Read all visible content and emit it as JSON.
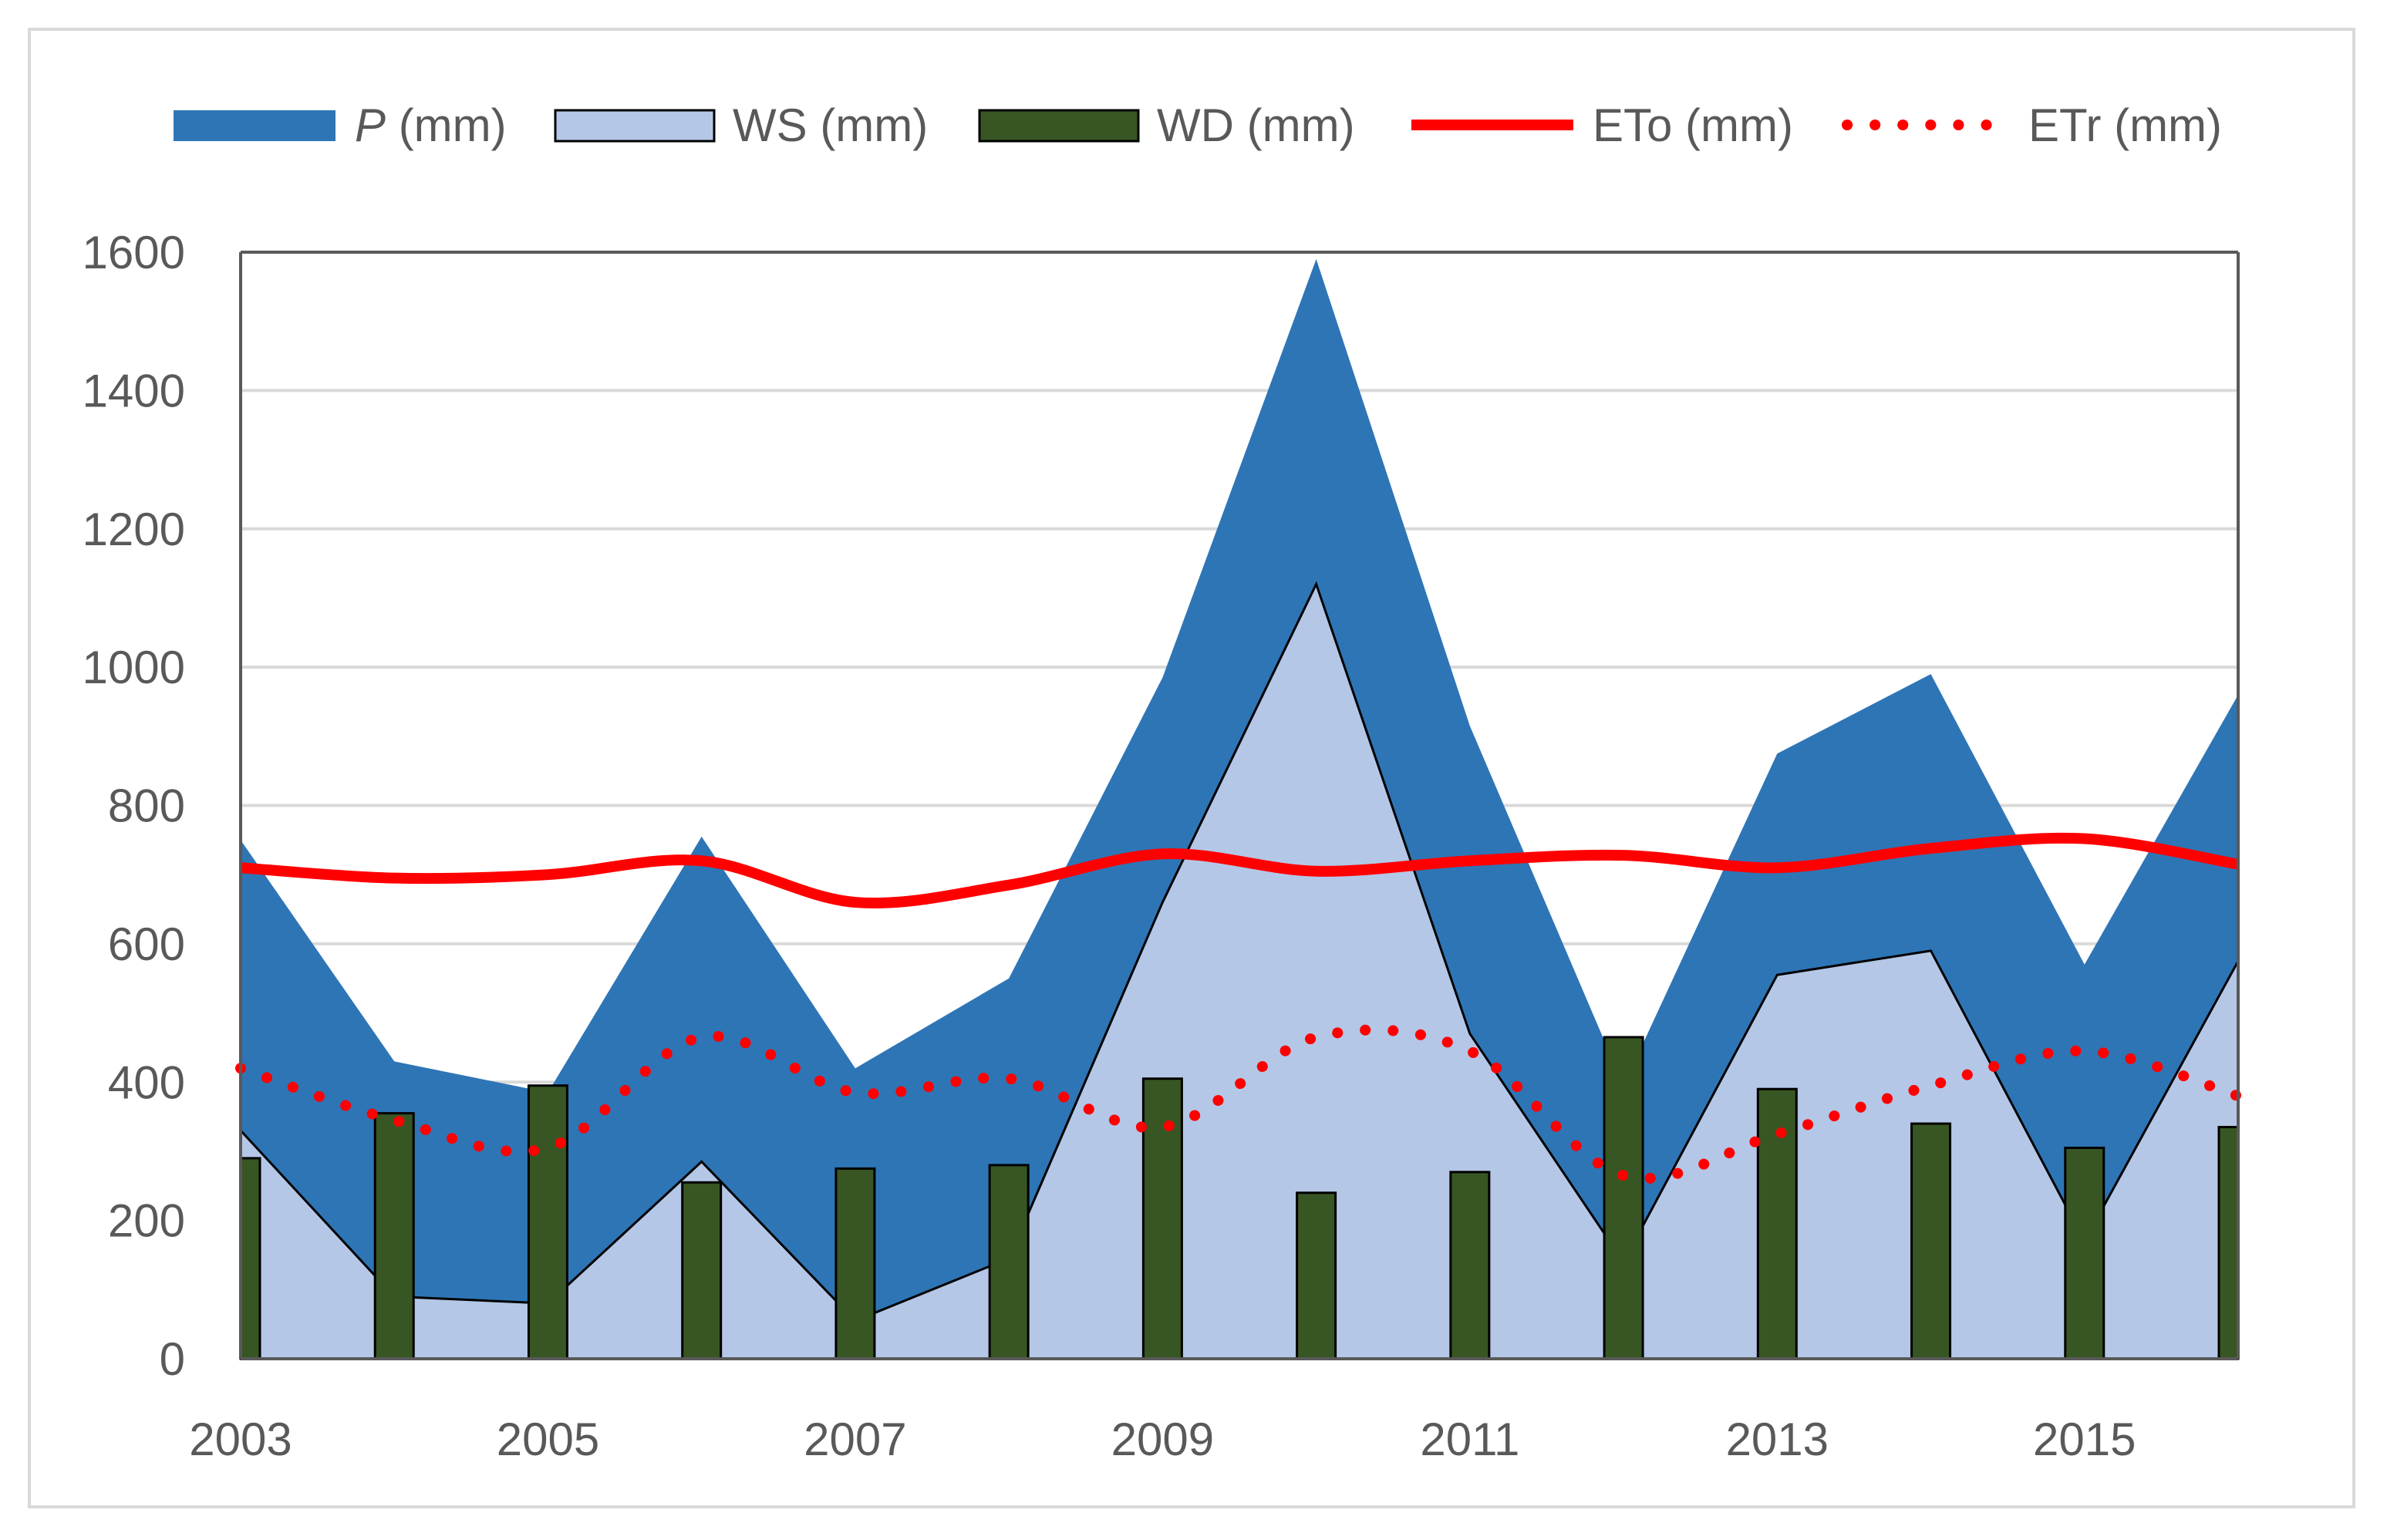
{
  "chart_data": {
    "type": "area",
    "title": "",
    "xlabel": "",
    "ylabel": "",
    "x": [
      2003,
      2004,
      2005,
      2006,
      2007,
      2008,
      2009,
      2010,
      2011,
      2012,
      2013,
      2014,
      2015,
      2016
    ],
    "xticks": [
      "2003",
      "2005",
      "2007",
      "2009",
      "2011",
      "2013",
      "2015"
    ],
    "ylim": [
      0,
      1600
    ],
    "yticks": [
      "0",
      "200",
      "400",
      "600",
      "800",
      "1000",
      "1200",
      "1400",
      "1600"
    ],
    "grid": true,
    "legend_position": "top",
    "series": [
      {
        "name": "P (mm)",
        "name_italic": "P",
        "name_rest": " (mm)",
        "kind": "area",
        "color": "#2e75b6",
        "values": [
          750,
          430,
          385,
          755,
          420,
          550,
          985,
          1590,
          915,
          395,
          875,
          990,
          570,
          960
        ]
      },
      {
        "name": "WS (mm)",
        "kind": "area",
        "color": "#b4c7e7",
        "values": [
          330,
          90,
          80,
          285,
          55,
          145,
          660,
          1120,
          470,
          140,
          555,
          590,
          170,
          575
        ]
      },
      {
        "name": "WD (mm)",
        "kind": "bar",
        "color": "#375623",
        "values": [
          290,
          355,
          395,
          255,
          275,
          280,
          405,
          240,
          270,
          465,
          390,
          340,
          305,
          335
        ]
      },
      {
        "name": "ETo (mm)",
        "kind": "line",
        "color": "#ff0000",
        "values": [
          710,
          695,
          700,
          720,
          660,
          685,
          730,
          705,
          720,
          728,
          710,
          738,
          752,
          715
        ]
      },
      {
        "name": "ETr (mm)",
        "kind": "dotted-line",
        "color": "#ff0000",
        "values": [
          420,
          345,
          305,
          465,
          385,
          405,
          335,
          465,
          445,
          265,
          325,
          395,
          445,
          380
        ]
      }
    ],
    "colors": {
      "grid": "#d9d9d9",
      "axis": "#595959",
      "outline": "#000000"
    }
  }
}
